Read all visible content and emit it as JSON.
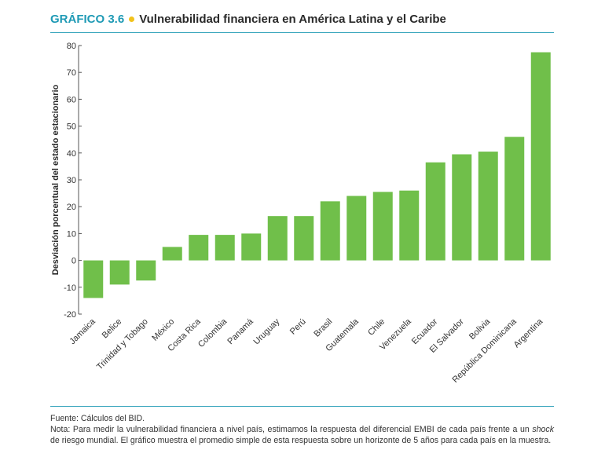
{
  "header": {
    "label": "GRÁFICO 3.6",
    "title": "Vulnerabilidad financiera en América Latina y el Caribe"
  },
  "notes": {
    "source": "Fuente: Cálculos del BID.",
    "note_prefix": "Nota: Para medir la vulnerabilidad financiera a nivel país, estimamos la respuesta del diferencial EMBI de cada país frente a un ",
    "note_italic": "shock",
    "note_suffix": " de riesgo mundial. El gráfico muestra el promedio simple de esta respuesta sobre un horizonte de 5 años para cada país en la muestra."
  },
  "colors": {
    "bar": "#70bf4a",
    "axis": "#555555",
    "accent": "#1f9ab5",
    "dot": "#f2c21b"
  },
  "chart_data": {
    "type": "bar",
    "title": "Vulnerabilidad financiera en América Latina y el Caribe",
    "xlabel": "",
    "ylabel": "Desviación porcentual del estado estacionario",
    "ylim": [
      -20,
      80
    ],
    "yticks": [
      -20,
      -10,
      0,
      10,
      20,
      30,
      40,
      50,
      60,
      70,
      80
    ],
    "grid": false,
    "categories": [
      "Jamaica",
      "Belice",
      "Trinidad y Tobago",
      "México",
      "Costa Rica",
      "Colombia",
      "Panamá",
      "Uruguay",
      "Perú",
      "Brasil",
      "Guatemala",
      "Chile",
      "Venezuela",
      "Ecuador",
      "El Salvador",
      "Bolivia",
      "República Dominicana",
      "Argentina"
    ],
    "values": [
      -14,
      -9,
      -7.5,
      5,
      9.5,
      9.5,
      10,
      16.5,
      16.5,
      22,
      24,
      25.5,
      26,
      36.5,
      39.5,
      40.5,
      46,
      77.5
    ]
  }
}
